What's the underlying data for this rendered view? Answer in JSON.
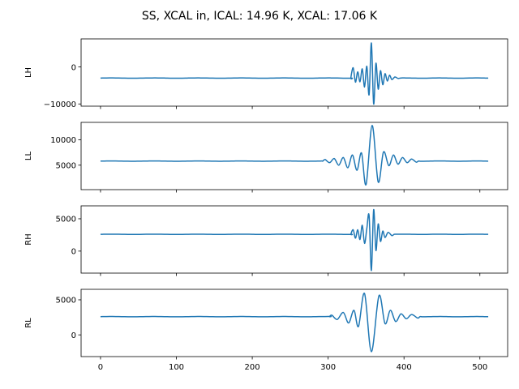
{
  "figure": {
    "title": "SS, XCAL in, ICAL: 14.96 K, XCAL: 17.06 K"
  },
  "colors": {
    "line": "#1f77b4",
    "axis": "#000000",
    "background": "#ffffff"
  },
  "chart_data": [
    {
      "type": "line",
      "ylabel": "LH",
      "xlim": [
        -25.6,
        536.6
      ],
      "ylim": [
        -10600,
        7600
      ],
      "yticks": [
        0,
        -10000
      ],
      "ytick_labels": [
        "0",
        "−10000"
      ],
      "show_xticklabels": false,
      "baseline": -3000,
      "packet": [
        {
          "x": 333,
          "y": -200
        },
        {
          "x": 336,
          "y": -4100
        },
        {
          "x": 339,
          "y": -1300
        },
        {
          "x": 342,
          "y": -4000
        },
        {
          "x": 345,
          "y": -500
        },
        {
          "x": 348,
          "y": -5400
        },
        {
          "x": 351,
          "y": 200
        },
        {
          "x": 354,
          "y": -7500
        },
        {
          "x": 357,
          "y": 6500
        },
        {
          "x": 360,
          "y": -10000
        },
        {
          "x": 363,
          "y": 1000
        },
        {
          "x": 366,
          "y": -6000
        },
        {
          "x": 369,
          "y": -1000
        },
        {
          "x": 372,
          "y": -4800
        },
        {
          "x": 375,
          "y": -1800
        },
        {
          "x": 378,
          "y": -3800
        },
        {
          "x": 381,
          "y": -2200
        },
        {
          "x": 384,
          "y": -3400
        },
        {
          "x": 388,
          "y": -2700
        },
        {
          "x": 392,
          "y": -3100
        }
      ]
    },
    {
      "type": "line",
      "ylabel": "LL",
      "xlim": [
        -25.6,
        536.6
      ],
      "ylim": [
        200,
        13400
      ],
      "yticks": [
        10000,
        5000
      ],
      "ytick_labels": [
        "10000",
        "5000"
      ],
      "show_xticklabels": false,
      "baseline": 5800,
      "packet": [
        {
          "x": 296,
          "y": 6100
        },
        {
          "x": 302,
          "y": 5500
        },
        {
          "x": 308,
          "y": 6300
        },
        {
          "x": 314,
          "y": 5000
        },
        {
          "x": 320,
          "y": 6500
        },
        {
          "x": 326,
          "y": 4500
        },
        {
          "x": 332,
          "y": 7000
        },
        {
          "x": 338,
          "y": 4000
        },
        {
          "x": 344,
          "y": 7400
        },
        {
          "x": 350,
          "y": 1200
        },
        {
          "x": 358,
          "y": 12800
        },
        {
          "x": 366,
          "y": 1700
        },
        {
          "x": 373,
          "y": 7600
        },
        {
          "x": 380,
          "y": 4900
        },
        {
          "x": 386,
          "y": 7000
        },
        {
          "x": 392,
          "y": 5200
        },
        {
          "x": 398,
          "y": 6500
        },
        {
          "x": 404,
          "y": 5500
        },
        {
          "x": 410,
          "y": 6200
        },
        {
          "x": 416,
          "y": 5600
        }
      ]
    },
    {
      "type": "line",
      "ylabel": "RH",
      "xlim": [
        -25.6,
        536.6
      ],
      "ylim": [
        -3400,
        7000
      ],
      "yticks": [
        5000,
        0
      ],
      "ytick_labels": [
        "5000",
        "0"
      ],
      "show_xticklabels": false,
      "baseline": 2600,
      "packet": [
        {
          "x": 333,
          "y": 3300
        },
        {
          "x": 336,
          "y": 2000
        },
        {
          "x": 339,
          "y": 3300
        },
        {
          "x": 342,
          "y": 1800
        },
        {
          "x": 345,
          "y": 4000
        },
        {
          "x": 348,
          "y": 1200
        },
        {
          "x": 351,
          "y": 3500
        },
        {
          "x": 354,
          "y": 5500
        },
        {
          "x": 357,
          "y": -3000
        },
        {
          "x": 360,
          "y": 6400
        },
        {
          "x": 363,
          "y": 100
        },
        {
          "x": 366,
          "y": 4200
        },
        {
          "x": 369,
          "y": 1500
        },
        {
          "x": 372,
          "y": 3100
        },
        {
          "x": 375,
          "y": 2100
        },
        {
          "x": 379,
          "y": 2900
        },
        {
          "x": 384,
          "y": 2400
        }
      ]
    },
    {
      "type": "line",
      "ylabel": "RL",
      "xlim": [
        -25.6,
        536.6
      ],
      "ylim": [
        -3100,
        6500
      ],
      "yticks": [
        5000,
        0
      ],
      "ytick_labels": [
        "5000",
        "0"
      ],
      "show_xticklabels": true,
      "xticks": [
        0,
        100,
        200,
        300,
        400,
        500
      ],
      "xtick_labels": [
        "0",
        "100",
        "200",
        "300",
        "400",
        "500"
      ],
      "baseline": 2600,
      "packet": [
        {
          "x": 305,
          "y": 2800
        },
        {
          "x": 312,
          "y": 2200
        },
        {
          "x": 320,
          "y": 3200
        },
        {
          "x": 327,
          "y": 1700
        },
        {
          "x": 334,
          "y": 3500
        },
        {
          "x": 340,
          "y": 1200
        },
        {
          "x": 348,
          "y": 5900
        },
        {
          "x": 357,
          "y": -2400
        },
        {
          "x": 367,
          "y": 5600
        },
        {
          "x": 375,
          "y": 1600
        },
        {
          "x": 382,
          "y": 3500
        },
        {
          "x": 389,
          "y": 1900
        },
        {
          "x": 396,
          "y": 3000
        },
        {
          "x": 403,
          "y": 2300
        },
        {
          "x": 410,
          "y": 2900
        },
        {
          "x": 418,
          "y": 2400
        }
      ]
    }
  ]
}
